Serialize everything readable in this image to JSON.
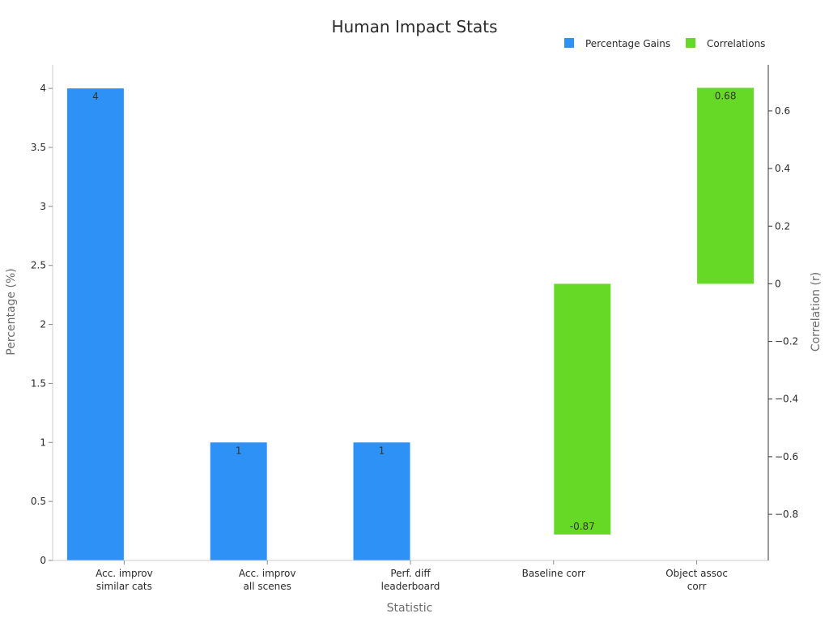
{
  "chart_data": {
    "type": "bar",
    "title": "Human Impact Stats",
    "xlabel": "Statistic",
    "ylabel_left": "Percentage (%)",
    "ylabel_right": "Correlation (r)",
    "categories": [
      [
        "Acc. improv",
        "similar cats"
      ],
      [
        "Acc. improv",
        "all scenes"
      ],
      [
        "Perf. diff",
        "leaderboard"
      ],
      [
        "Baseline corr"
      ],
      [
        "Object assoc",
        "corr"
      ]
    ],
    "series": [
      {
        "name": "Percentage Gains",
        "axis": "left",
        "color": "#2e91f5",
        "values": [
          4,
          1,
          1,
          null,
          null
        ],
        "labels": [
          "4",
          "1",
          "1",
          "",
          ""
        ]
      },
      {
        "name": "Correlations",
        "axis": "right",
        "color": "#66d926",
        "values": [
          null,
          null,
          null,
          -0.87,
          0.68
        ],
        "labels": [
          "",
          "",
          "",
          "-0.87",
          "0.68"
        ]
      }
    ],
    "left_axis": {
      "ylim": [
        0,
        4.2
      ],
      "ticks": [
        0,
        0.5,
        1,
        1.5,
        2,
        2.5,
        3,
        3.5,
        4
      ],
      "tick_labels": [
        "0",
        "0.5",
        "1",
        "1.5",
        "2",
        "2.5",
        "3",
        "3.5",
        "4"
      ]
    },
    "right_axis": {
      "ylim": [
        -0.96,
        0.76
      ],
      "ticks": [
        -0.8,
        -0.6,
        -0.4,
        -0.2,
        0,
        0.2,
        0.4,
        0.6
      ],
      "tick_labels": [
        "−0.8",
        "−0.6",
        "−0.4",
        "−0.2",
        "0",
        "0.2",
        "0.4",
        "0.6"
      ]
    },
    "legend_position": "top-right",
    "grid": false
  }
}
